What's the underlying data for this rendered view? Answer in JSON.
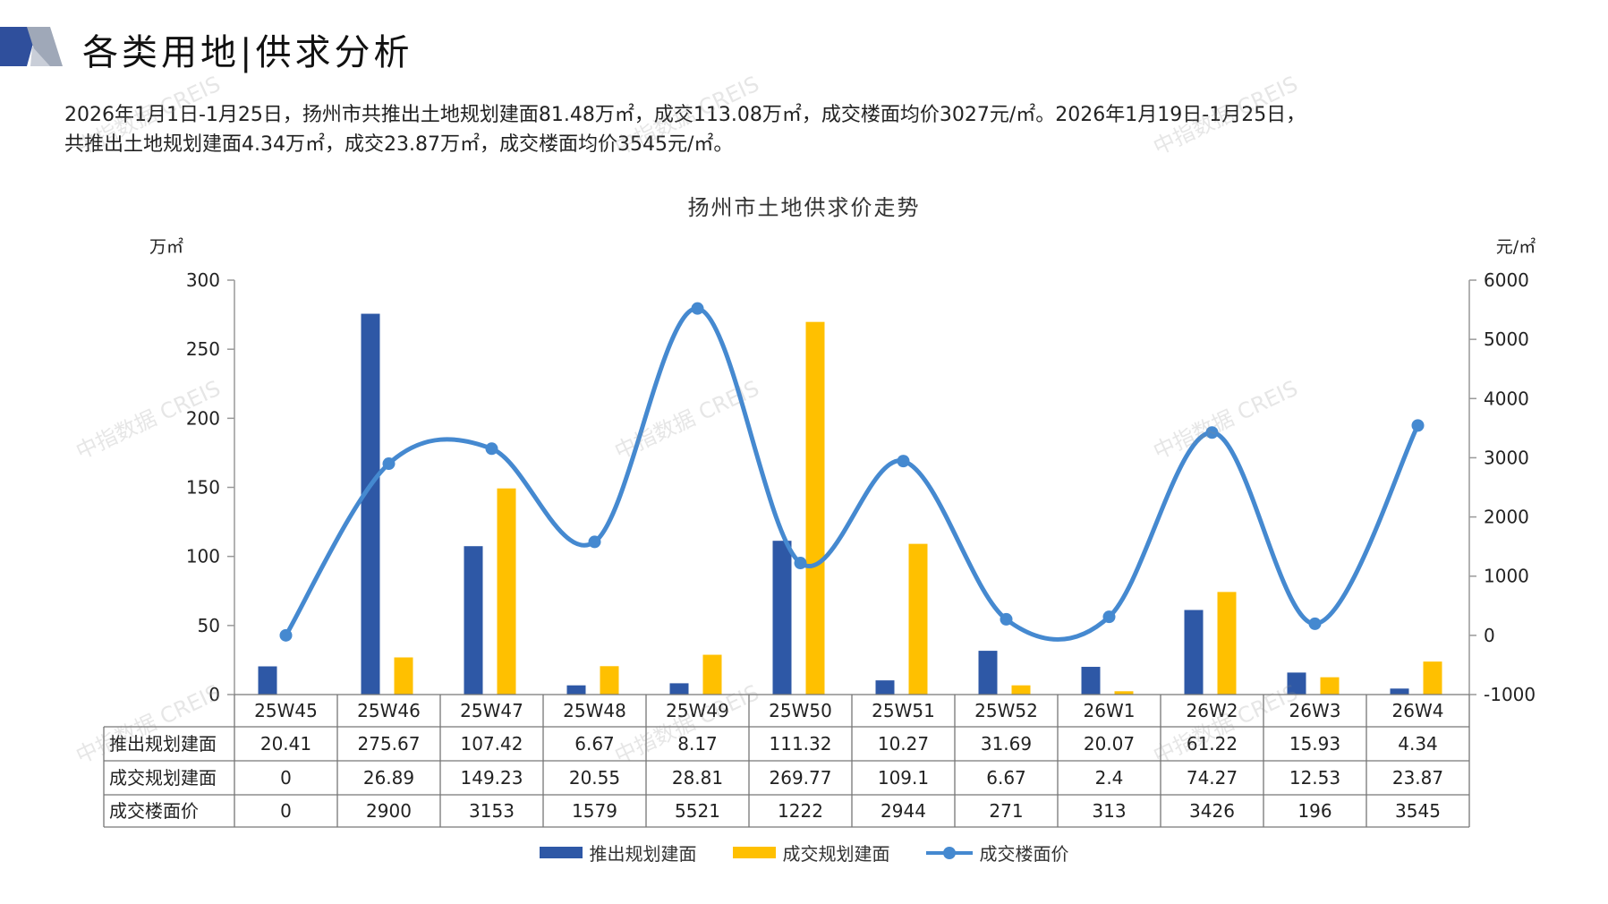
{
  "header": {
    "title": "各类用地|供求分析"
  },
  "summary": {
    "line1": "2026年1月1日-1月25日，扬州市共推出土地规划建面81.48万㎡，成交113.08万㎡，成交楼面均价3027元/㎡。2026年1月19日-1月25日，",
    "line2": "共推出土地规划建面4.34万㎡，成交23.87万㎡，成交楼面均价3545元/㎡。"
  },
  "watermark": "中指数据 CREIS",
  "colors": {
    "supply": "#2E58A6",
    "deal": "#FFC000",
    "price": "#4589D0",
    "accent": "#2F4F9C"
  },
  "chart_data": {
    "type": "bar",
    "title": "扬州市土地供求价走势",
    "categories": [
      "25W45",
      "25W46",
      "25W47",
      "25W48",
      "25W49",
      "25W50",
      "25W51",
      "25W52",
      "26W1",
      "26W2",
      "26W3",
      "26W4"
    ],
    "y_left": {
      "unit": "万㎡",
      "ylim": [
        0,
        300
      ],
      "ticks": [
        0,
        50,
        100,
        150,
        200,
        250,
        300
      ]
    },
    "y_right": {
      "unit": "元/㎡",
      "ylim": [
        -1000,
        6000
      ],
      "ticks": [
        -1000,
        0,
        1000,
        2000,
        3000,
        4000,
        5000,
        6000
      ]
    },
    "series": [
      {
        "name": "推出规划建面",
        "type": "bar",
        "axis": "left",
        "values": [
          20.41,
          275.67,
          107.42,
          6.67,
          8.17,
          111.32,
          10.27,
          31.69,
          20.07,
          61.22,
          15.93,
          4.34
        ]
      },
      {
        "name": "成交规划建面",
        "type": "bar",
        "axis": "left",
        "values": [
          0,
          26.89,
          149.23,
          20.55,
          28.81,
          269.77,
          109.1,
          6.67,
          2.4,
          74.27,
          12.53,
          23.87
        ]
      },
      {
        "name": "成交楼面价",
        "type": "line",
        "axis": "right",
        "values": [
          0,
          2900,
          3153,
          1579,
          5521,
          1222,
          2944,
          271,
          313,
          3426,
          196,
          3545
        ]
      }
    ],
    "table": {
      "rows": [
        {
          "label": "推出规划建面",
          "cells": [
            "20.41",
            "275.67",
            "107.42",
            "6.67",
            "8.17",
            "111.32",
            "10.27",
            "31.69",
            "20.07",
            "61.22",
            "15.93",
            "4.34"
          ]
        },
        {
          "label": "成交规划建面",
          "cells": [
            "0",
            "26.89",
            "149.23",
            "20.55",
            "28.81",
            "269.77",
            "109.1",
            "6.67",
            "2.4",
            "74.27",
            "12.53",
            "23.87"
          ]
        },
        {
          "label": "成交楼面价",
          "cells": [
            "0",
            "2900",
            "3153",
            "1579",
            "5521",
            "1222",
            "2944",
            "271",
            "313",
            "3426",
            "196",
            "3545"
          ]
        }
      ]
    },
    "legend": {
      "position": "bottom",
      "items": [
        "推出规划建面",
        "成交规划建面",
        "成交楼面价"
      ]
    },
    "grid": false
  }
}
